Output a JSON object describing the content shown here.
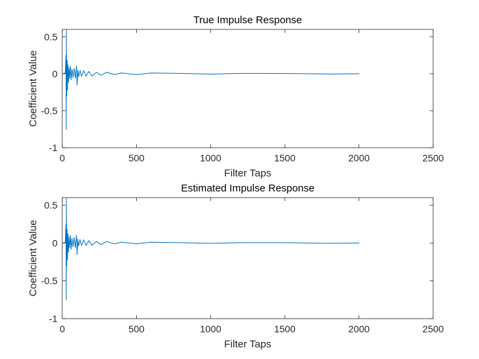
{
  "chart_data": [
    {
      "type": "line",
      "title": "True Impulse Response",
      "xlabel": "Filter Taps",
      "ylabel": "Coefficient Value",
      "xlim": [
        0,
        2500
      ],
      "ylim": [
        -1,
        0.6
      ],
      "xticks": [
        0,
        500,
        1000,
        1500,
        2000,
        2500
      ],
      "xtick_labels": [
        "0",
        "500",
        "1000",
        "1500",
        "2000",
        "2500"
      ],
      "yticks": [
        -1,
        -0.5,
        0,
        0.5
      ],
      "ytick_labels": [
        "-1",
        "-0.5",
        "0",
        "0.5"
      ],
      "grid": false,
      "series_color": "#0072BD",
      "series": [
        {
          "x": [
            1,
            20,
            25,
            27,
            28,
            30,
            33,
            35,
            38,
            42,
            46,
            50,
            55,
            60,
            66,
            72,
            80,
            88,
            95,
            100,
            105,
            110,
            120,
            130,
            145,
            160,
            180,
            200,
            230,
            260,
            300,
            350,
            400,
            500,
            600,
            800,
            1000,
            1200,
            1500,
            1800,
            2000
          ],
          "y": [
            0,
            0.01,
            0.25,
            -0.75,
            0.6,
            -0.3,
            0.18,
            -0.22,
            0.12,
            -0.12,
            0.08,
            -0.06,
            0.1,
            -0.08,
            0.06,
            -0.05,
            0.07,
            -0.06,
            0.1,
            -0.15,
            0.05,
            -0.04,
            0.04,
            -0.03,
            0.04,
            -0.03,
            0.03,
            -0.03,
            0.02,
            -0.02,
            0.02,
            -0.01,
            0.01,
            -0.01,
            0.01,
            0.005,
            -0.005,
            0.005,
            0.004,
            -0.004,
            0
          ]
        }
      ]
    },
    {
      "type": "line",
      "title": "Estimated Impulse Response",
      "xlabel": "Filter Taps",
      "ylabel": "Coefficient Value",
      "xlim": [
        0,
        2500
      ],
      "ylim": [
        -1,
        0.6
      ],
      "xticks": [
        0,
        500,
        1000,
        1500,
        2000,
        2500
      ],
      "xtick_labels": [
        "0",
        "500",
        "1000",
        "1500",
        "2000",
        "2500"
      ],
      "yticks": [
        -1,
        -0.5,
        0,
        0.5
      ],
      "ytick_labels": [
        "-1",
        "-0.5",
        "0",
        "0.5"
      ],
      "grid": false,
      "series_color": "#0072BD",
      "series": [
        {
          "x": [
            1,
            20,
            25,
            27,
            28,
            30,
            33,
            35,
            38,
            42,
            46,
            50,
            55,
            60,
            66,
            72,
            80,
            88,
            95,
            100,
            105,
            110,
            120,
            130,
            145,
            160,
            180,
            200,
            230,
            260,
            300,
            350,
            400,
            500,
            600,
            800,
            1000,
            1200,
            1500,
            1800,
            2000
          ],
          "y": [
            0,
            0.01,
            0.25,
            -0.75,
            0.6,
            -0.3,
            0.18,
            -0.22,
            0.12,
            -0.12,
            0.08,
            -0.06,
            0.1,
            -0.08,
            0.06,
            -0.05,
            0.07,
            -0.06,
            0.1,
            -0.15,
            0.05,
            -0.04,
            0.04,
            -0.03,
            0.04,
            -0.03,
            0.03,
            -0.03,
            0.02,
            -0.02,
            0.02,
            -0.01,
            0.01,
            -0.01,
            0.01,
            0.005,
            -0.005,
            0.005,
            0.004,
            -0.004,
            0
          ]
        }
      ]
    }
  ]
}
